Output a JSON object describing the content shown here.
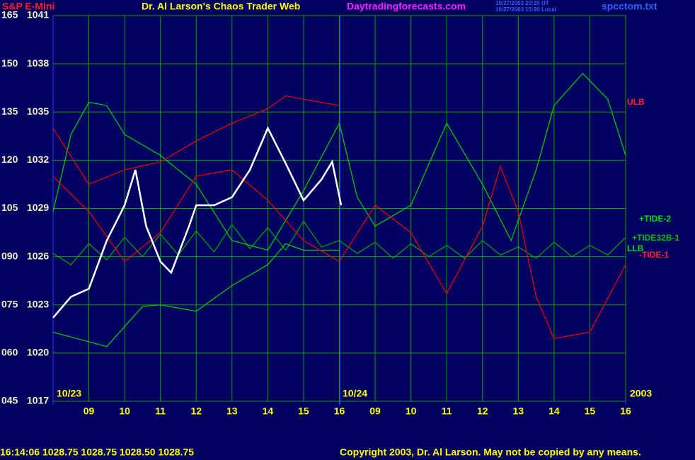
{
  "chart_data": {
    "type": "line",
    "title": "S&P E-Mini",
    "subtitle": "Dr. Al Larson's Chaos Trader Web",
    "site": "Daytradingforecasts.com",
    "timestamps": [
      "10/27/2003 20:20 UT",
      "10/27/2003 15:20 Local"
    ],
    "file": "spcctom.txt",
    "status": "16:14:06 1028.75 1028.75 1028.50 1028.75",
    "copyright": "Copyright 2003, Dr. Al Larson. May not be copied by any means.",
    "date_labels": [
      "10/23",
      "10/24",
      "2003"
    ],
    "xlim": [
      0,
      16
    ],
    "xticks": [
      {
        "value": 1,
        "label": "09"
      },
      {
        "value": 2,
        "label": "10"
      },
      {
        "value": 3,
        "label": "11"
      },
      {
        "value": 4,
        "label": "12"
      },
      {
        "value": 5,
        "label": "13"
      },
      {
        "value": 6,
        "label": "14"
      },
      {
        "value": 7,
        "label": "15"
      },
      {
        "value": 8,
        "label": "16"
      },
      {
        "value": 9,
        "label": "09"
      },
      {
        "value": 10,
        "label": "10"
      },
      {
        "value": 11,
        "label": "11"
      },
      {
        "value": 12,
        "label": "12"
      },
      {
        "value": 13,
        "label": "13"
      },
      {
        "value": 14,
        "label": "14"
      },
      {
        "value": 15,
        "label": "15"
      },
      {
        "value": 16,
        "label": "16"
      }
    ],
    "ylim": [
      1017,
      1041
    ],
    "yticks": [
      1017,
      1020,
      1023,
      1026,
      1029,
      1032,
      1035,
      1038,
      1041
    ],
    "y2lim": [
      45,
      165
    ],
    "y2ticks": [
      {
        "value": 45,
        "label": "045"
      },
      {
        "value": 60,
        "label": "060"
      },
      {
        "value": 75,
        "label": "075"
      },
      {
        "value": 90,
        "label": "090"
      },
      105,
      120,
      135,
      150,
      165
    ],
    "grid": true,
    "series": [
      {
        "name": "+TIDE32B-1",
        "color": "#00a000",
        "x": [
          0,
          0.5,
          1,
          1.5,
          2,
          2.5,
          3,
          3.5,
          4,
          4.5,
          5,
          5.5,
          6,
          6.5,
          7,
          7.5,
          8,
          8.5,
          9,
          9.5,
          10,
          10.5,
          11,
          11.5,
          12,
          12.5,
          13,
          13.5,
          14,
          14.5,
          15,
          15.5,
          16
        ],
        "values": [
          1026.2,
          1025.5,
          1026.8,
          1025.8,
          1027.2,
          1026.0,
          1027.4,
          1026.1,
          1027.6,
          1026.3,
          1028.0,
          1026.5,
          1027.8,
          1026.4,
          1028.2,
          1026.6,
          1027.0,
          1026.2,
          1026.9,
          1025.9,
          1026.8,
          1026.0,
          1026.7,
          1025.9,
          1027.0,
          1026.1,
          1026.6,
          1025.9,
          1026.9,
          1026.0,
          1026.7,
          1026.1,
          1027.2
        ]
      },
      {
        "name": "LLB",
        "color": "#00c800",
        "x": [
          0,
          1.5,
          2.5,
          3,
          4,
          5,
          6,
          6.5,
          7,
          8
        ],
        "values": [
          1021.3,
          1020.4,
          1022.9,
          1023.0,
          1022.6,
          1024.2,
          1025.5,
          1026.8,
          1026.4,
          1026.4
        ]
      },
      {
        "name": "+TIDE-2",
        "color": "#00c800",
        "x": [
          0,
          0.5,
          1,
          1.5,
          2,
          3,
          4,
          5,
          6,
          7,
          8,
          8.5,
          9,
          10,
          11,
          12,
          12.8,
          13.5,
          14,
          14.8,
          15.5,
          16
        ],
        "values": [
          1028.8,
          1033.6,
          1035.6,
          1035.4,
          1033.6,
          1032.3,
          1030.5,
          1027.0,
          1026.4,
          1030.1,
          1034.3,
          1029.7,
          1027.9,
          1029.2,
          1034.3,
          1030.5,
          1027.0,
          1031.4,
          1035.4,
          1037.4,
          1035.8,
          1032.3
        ]
      },
      {
        "name": "-TIDE-1",
        "color": "#e00000",
        "x": [
          0,
          1,
          2,
          3,
          4,
          5,
          6,
          7,
          8,
          9,
          10,
          11,
          12,
          12.5,
          13,
          13.5,
          14,
          15,
          16
        ],
        "values": [
          1031.0,
          1028.8,
          1025.7,
          1027.5,
          1031.0,
          1031.4,
          1029.5,
          1027.0,
          1025.7,
          1029.2,
          1027.5,
          1023.7,
          1027.9,
          1031.6,
          1028.8,
          1023.5,
          1020.9,
          1021.3,
          1025.5
        ]
      },
      {
        "name": "ULB",
        "color": "#e00000",
        "x": [
          0,
          1,
          2,
          3,
          4,
          5,
          6,
          6.5,
          7,
          8
        ],
        "values": [
          1034.0,
          1030.5,
          1031.4,
          1031.9,
          1033.2,
          1034.3,
          1035.2,
          1036.0,
          1035.8,
          1035.4
        ]
      },
      {
        "color": "#ffffff",
        "x": [
          0,
          0.5,
          1,
          1.5,
          2,
          2.3,
          2.6,
          3,
          3.3,
          3.8,
          4,
          4.5,
          5,
          5.5,
          6,
          6.5,
          7,
          7.5,
          7.8,
          8.05
        ],
        "values": [
          1022.2,
          1023.5,
          1024.0,
          1027.0,
          1029.2,
          1031.4,
          1027.9,
          1025.7,
          1025.0,
          1027.9,
          1029.2,
          1029.2,
          1029.7,
          1031.4,
          1034.0,
          1031.8,
          1029.5,
          1030.8,
          1031.9,
          1029.2
        ]
      }
    ]
  }
}
